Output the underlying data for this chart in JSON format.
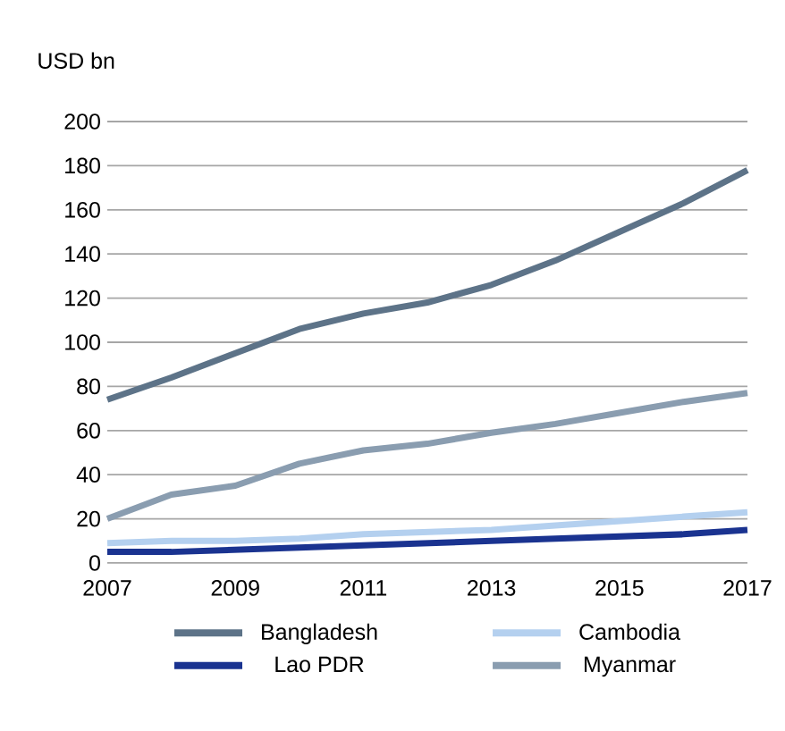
{
  "chart_data": {
    "type": "line",
    "ylabel": "USD bn",
    "x": [
      2007,
      2008,
      2009,
      2010,
      2011,
      2012,
      2013,
      2014,
      2015,
      2016,
      2017
    ],
    "series": [
      {
        "name": "Bangladesh",
        "color": "#5d7388",
        "values": [
          74,
          84,
          95,
          106,
          113,
          118,
          126,
          137,
          150,
          163,
          178
        ]
      },
      {
        "name": "Cambodia",
        "color": "#b4d0ef",
        "values": [
          9,
          10,
          10,
          11,
          13,
          14,
          15,
          17,
          19,
          21,
          23
        ]
      },
      {
        "name": "Lao PDR",
        "color": "#1a3390",
        "values": [
          5,
          5,
          6,
          7,
          8,
          9,
          10,
          11,
          12,
          13,
          15
        ]
      },
      {
        "name": "Myanmar",
        "color": "#8a9db0",
        "values": [
          20,
          31,
          35,
          45,
          51,
          54,
          59,
          63,
          68,
          73,
          77
        ]
      }
    ],
    "xlim": [
      2007,
      2017
    ],
    "xticks": [
      2007,
      2009,
      2011,
      2013,
      2015,
      2017
    ],
    "ylim": [
      0,
      200
    ],
    "yticks": [
      0,
      20,
      40,
      60,
      80,
      100,
      120,
      140,
      160,
      180,
      200
    ],
    "grid": "y",
    "legend": "bottom",
    "marker": "none",
    "line_style": "solid"
  }
}
